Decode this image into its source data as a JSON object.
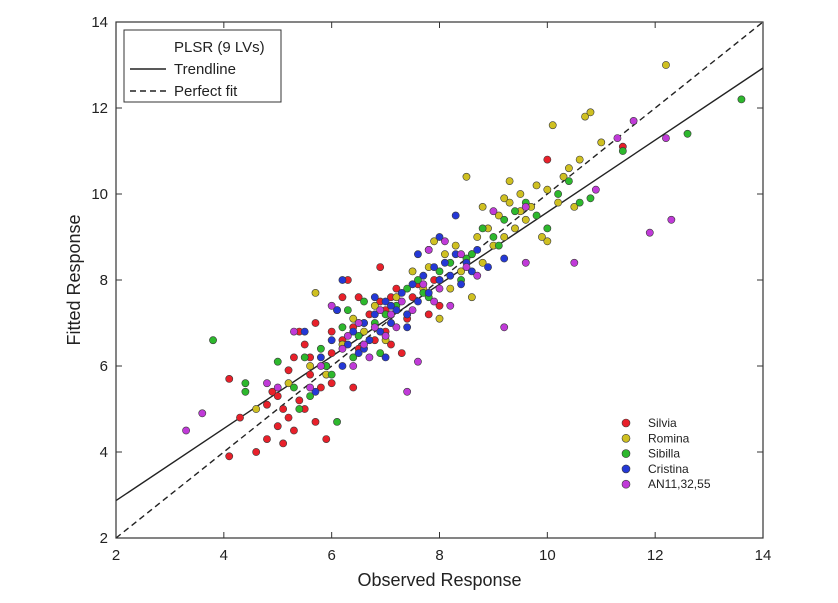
{
  "chart_data": {
    "type": "scatter",
    "xlabel": "Observed Response",
    "ylabel": "Fitted Response",
    "xlim": [
      2,
      14
    ],
    "ylim": [
      2,
      14
    ],
    "xticks": [
      2,
      4,
      6,
      8,
      10,
      12,
      14
    ],
    "yticks": [
      2,
      4,
      6,
      8,
      10,
      12,
      14
    ],
    "grid": false,
    "lines_legend": {
      "placement": "top-left",
      "entries": [
        {
          "name": "PLSR (9 LVs)",
          "style": "none"
        },
        {
          "name": "Trendline",
          "style": "solid"
        },
        {
          "name": "Perfect fit",
          "style": "dashed"
        }
      ]
    },
    "trendline": {
      "x": [
        2,
        14
      ],
      "y": [
        2.87,
        12.93
      ]
    },
    "perfect_fit": {
      "x": [
        2,
        14
      ],
      "y": [
        2,
        14
      ]
    },
    "series_legend_placement": "bottom-right",
    "series": [
      {
        "name": "Silvia",
        "color": "#e8202a",
        "points": [
          [
            4.1,
            3.9
          ],
          [
            4.3,
            4.8
          ],
          [
            4.1,
            5.7
          ],
          [
            4.6,
            4.0
          ],
          [
            4.8,
            5.1
          ],
          [
            4.9,
            5.4
          ],
          [
            5.0,
            4.6
          ],
          [
            5.1,
            5.0
          ],
          [
            5.2,
            4.8
          ],
          [
            5.3,
            4.5
          ],
          [
            5.1,
            4.2
          ],
          [
            5.4,
            5.2
          ],
          [
            5.2,
            5.9
          ],
          [
            5.3,
            6.2
          ],
          [
            5.5,
            6.5
          ],
          [
            5.4,
            6.8
          ],
          [
            5.6,
            6.2
          ],
          [
            5.7,
            7.0
          ],
          [
            5.7,
            4.7
          ],
          [
            5.8,
            5.5
          ],
          [
            5.9,
            6.0
          ],
          [
            6.0,
            6.3
          ],
          [
            6.0,
            6.8
          ],
          [
            6.1,
            7.3
          ],
          [
            6.2,
            7.6
          ],
          [
            6.3,
            8.0
          ],
          [
            6.4,
            6.9
          ],
          [
            6.5,
            6.4
          ],
          [
            6.6,
            7.0
          ],
          [
            6.7,
            7.2
          ],
          [
            6.8,
            6.6
          ],
          [
            6.9,
            7.5
          ],
          [
            7.0,
            7.3
          ],
          [
            7.1,
            6.5
          ],
          [
            7.2,
            7.8
          ],
          [
            7.3,
            6.3
          ],
          [
            7.4,
            7.1
          ],
          [
            7.5,
            7.6
          ],
          [
            7.6,
            7.9
          ],
          [
            7.8,
            7.2
          ],
          [
            7.9,
            8.0
          ],
          [
            8.0,
            7.4
          ],
          [
            5.6,
            5.8
          ],
          [
            5.0,
            5.3
          ],
          [
            6.2,
            6.6
          ],
          [
            6.5,
            7.6
          ],
          [
            7.0,
            6.8
          ],
          [
            10.0,
            10.8
          ],
          [
            11.4,
            11.1
          ],
          [
            4.8,
            4.3
          ],
          [
            5.9,
            4.3
          ],
          [
            6.4,
            5.5
          ],
          [
            7.1,
            7.6
          ],
          [
            6.9,
            8.3
          ],
          [
            5.5,
            5.0
          ],
          [
            6.0,
            5.6
          ]
        ]
      },
      {
        "name": "Romina",
        "color": "#cfc021",
        "points": [
          [
            4.6,
            5.0
          ],
          [
            5.2,
            5.6
          ],
          [
            5.6,
            6.0
          ],
          [
            5.7,
            7.7
          ],
          [
            5.9,
            5.8
          ],
          [
            6.2,
            6.5
          ],
          [
            6.4,
            7.1
          ],
          [
            6.6,
            6.8
          ],
          [
            6.8,
            7.4
          ],
          [
            7.0,
            6.6
          ],
          [
            7.2,
            7.6
          ],
          [
            7.4,
            7.2
          ],
          [
            7.5,
            8.2
          ],
          [
            7.7,
            7.8
          ],
          [
            7.8,
            8.3
          ],
          [
            8.0,
            8.0
          ],
          [
            8.1,
            8.6
          ],
          [
            8.2,
            7.8
          ],
          [
            8.3,
            8.8
          ],
          [
            8.4,
            8.2
          ],
          [
            8.5,
            10.4
          ],
          [
            8.6,
            8.6
          ],
          [
            8.7,
            9.0
          ],
          [
            8.8,
            8.4
          ],
          [
            8.9,
            9.2
          ],
          [
            9.0,
            8.8
          ],
          [
            9.1,
            9.5
          ],
          [
            9.2,
            9.0
          ],
          [
            9.3,
            9.8
          ],
          [
            9.4,
            9.2
          ],
          [
            9.5,
            10.0
          ],
          [
            9.6,
            9.4
          ],
          [
            9.7,
            9.7
          ],
          [
            9.8,
            10.2
          ],
          [
            9.9,
            9.0
          ],
          [
            10.0,
            10.1
          ],
          [
            10.1,
            11.6
          ],
          [
            10.2,
            9.8
          ],
          [
            10.3,
            10.4
          ],
          [
            10.4,
            10.6
          ],
          [
            10.5,
            9.7
          ],
          [
            10.6,
            10.8
          ],
          [
            10.7,
            11.8
          ],
          [
            10.8,
            11.9
          ],
          [
            11.0,
            11.2
          ],
          [
            12.2,
            13.0
          ],
          [
            9.3,
            10.3
          ],
          [
            8.0,
            7.1
          ],
          [
            7.9,
            8.9
          ],
          [
            8.6,
            7.6
          ],
          [
            9.5,
            9.6
          ],
          [
            10.0,
            8.9
          ],
          [
            9.2,
            9.9
          ],
          [
            8.8,
            9.7
          ]
        ]
      },
      {
        "name": "Sibilla",
        "color": "#2db82d",
        "points": [
          [
            3.8,
            6.6
          ],
          [
            4.4,
            5.4
          ],
          [
            4.4,
            5.6
          ],
          [
            5.0,
            6.1
          ],
          [
            5.3,
            5.5
          ],
          [
            5.5,
            6.2
          ],
          [
            5.6,
            5.3
          ],
          [
            5.8,
            6.4
          ],
          [
            6.0,
            5.8
          ],
          [
            6.1,
            4.7
          ],
          [
            6.2,
            6.9
          ],
          [
            6.4,
            6.2
          ],
          [
            6.6,
            7.5
          ],
          [
            6.8,
            7.0
          ],
          [
            7.0,
            7.2
          ],
          [
            7.2,
            7.4
          ],
          [
            7.4,
            7.8
          ],
          [
            7.6,
            8.0
          ],
          [
            7.8,
            7.6
          ],
          [
            8.0,
            8.2
          ],
          [
            8.2,
            8.4
          ],
          [
            8.4,
            8.0
          ],
          [
            8.6,
            8.6
          ],
          [
            8.8,
            9.2
          ],
          [
            9.0,
            9.0
          ],
          [
            9.2,
            9.4
          ],
          [
            9.4,
            9.6
          ],
          [
            9.6,
            9.8
          ],
          [
            9.8,
            9.5
          ],
          [
            10.0,
            9.2
          ],
          [
            10.2,
            10.0
          ],
          [
            10.4,
            10.3
          ],
          [
            10.6,
            9.8
          ],
          [
            10.8,
            9.9
          ],
          [
            11.4,
            11.0
          ],
          [
            12.6,
            11.4
          ],
          [
            13.6,
            12.2
          ],
          [
            6.5,
            6.7
          ],
          [
            7.1,
            7.0
          ],
          [
            5.9,
            6.0
          ],
          [
            8.5,
            8.5
          ],
          [
            9.1,
            8.8
          ],
          [
            6.9,
            6.3
          ],
          [
            7.7,
            7.7
          ],
          [
            5.4,
            5.0
          ],
          [
            6.3,
            7.3
          ]
        ]
      },
      {
        "name": "Cristina",
        "color": "#2438d6",
        "points": [
          [
            5.5,
            6.8
          ],
          [
            5.8,
            6.2
          ],
          [
            6.0,
            6.6
          ],
          [
            6.2,
            6.0
          ],
          [
            6.3,
            6.5
          ],
          [
            6.4,
            6.8
          ],
          [
            6.5,
            6.3
          ],
          [
            6.6,
            7.0
          ],
          [
            6.7,
            6.6
          ],
          [
            6.8,
            7.2
          ],
          [
            6.9,
            6.8
          ],
          [
            7.0,
            7.5
          ],
          [
            7.1,
            7.0
          ],
          [
            7.2,
            7.3
          ],
          [
            7.3,
            7.7
          ],
          [
            7.4,
            7.2
          ],
          [
            7.5,
            7.9
          ],
          [
            7.6,
            7.5
          ],
          [
            7.7,
            8.1
          ],
          [
            7.8,
            7.7
          ],
          [
            7.9,
            8.3
          ],
          [
            8.0,
            8.0
          ],
          [
            8.1,
            8.4
          ],
          [
            8.2,
            8.1
          ],
          [
            8.3,
            8.6
          ],
          [
            8.5,
            8.4
          ],
          [
            8.6,
            8.2
          ],
          [
            8.7,
            8.7
          ],
          [
            8.9,
            8.3
          ],
          [
            8.0,
            9.0
          ],
          [
            8.3,
            9.5
          ],
          [
            6.2,
            8.0
          ],
          [
            6.6,
            6.4
          ],
          [
            7.0,
            6.2
          ],
          [
            6.1,
            7.3
          ],
          [
            5.7,
            5.4
          ],
          [
            7.6,
            8.6
          ],
          [
            8.4,
            7.9
          ],
          [
            9.2,
            8.5
          ],
          [
            7.4,
            6.9
          ],
          [
            6.8,
            7.6
          ],
          [
            7.8,
            8.7
          ],
          [
            7.1,
            7.4
          ],
          [
            6.5,
            7.0
          ]
        ]
      },
      {
        "name": "AN11,32,55",
        "color": "#c03ad8",
        "points": [
          [
            3.3,
            4.5
          ],
          [
            3.6,
            4.9
          ],
          [
            4.8,
            5.6
          ],
          [
            5.0,
            5.5
          ],
          [
            5.3,
            6.8
          ],
          [
            5.6,
            5.5
          ],
          [
            5.8,
            6.0
          ],
          [
            6.0,
            7.4
          ],
          [
            6.2,
            6.4
          ],
          [
            6.4,
            6.0
          ],
          [
            6.5,
            7.0
          ],
          [
            6.6,
            6.5
          ],
          [
            6.7,
            6.2
          ],
          [
            6.8,
            6.9
          ],
          [
            6.9,
            7.3
          ],
          [
            7.0,
            6.7
          ],
          [
            7.1,
            7.2
          ],
          [
            7.2,
            6.9
          ],
          [
            7.3,
            7.5
          ],
          [
            7.4,
            5.4
          ],
          [
            7.5,
            7.3
          ],
          [
            7.7,
            7.9
          ],
          [
            7.8,
            8.7
          ],
          [
            7.9,
            7.5
          ],
          [
            8.0,
            7.8
          ],
          [
            8.1,
            8.9
          ],
          [
            8.2,
            7.4
          ],
          [
            8.4,
            8.6
          ],
          [
            8.7,
            8.1
          ],
          [
            9.0,
            9.6
          ],
          [
            9.2,
            6.9
          ],
          [
            9.6,
            8.4
          ],
          [
            10.5,
            8.4
          ],
          [
            10.9,
            10.1
          ],
          [
            11.3,
            11.3
          ],
          [
            11.6,
            11.7
          ],
          [
            11.9,
            9.1
          ],
          [
            12.2,
            11.3
          ],
          [
            12.3,
            9.4
          ],
          [
            7.6,
            6.1
          ],
          [
            6.3,
            6.7
          ],
          [
            8.5,
            8.3
          ],
          [
            9.6,
            9.7
          ]
        ]
      }
    ]
  }
}
